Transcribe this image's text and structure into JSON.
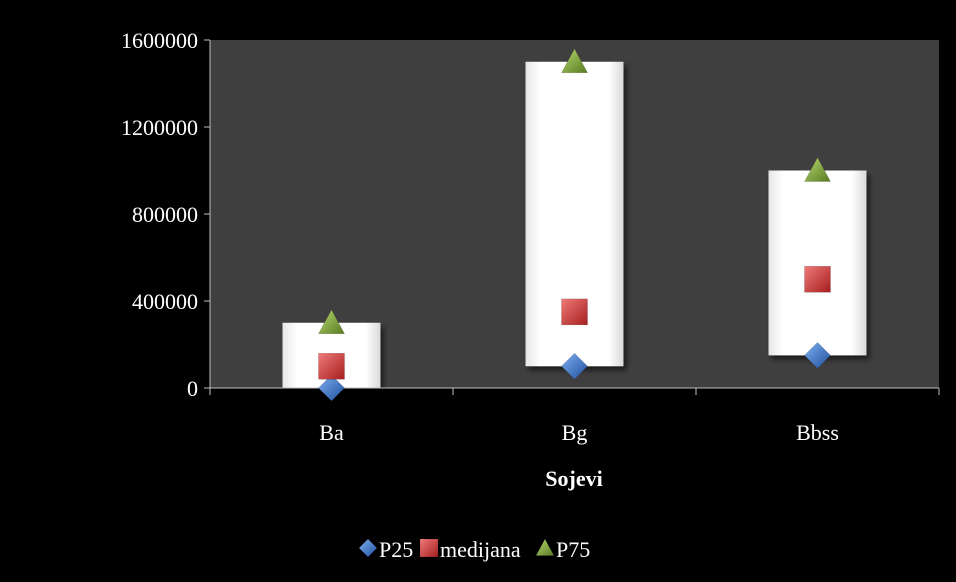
{
  "chart_data": {
    "type": "scatter",
    "title": "",
    "xlabel": "Sojevi",
    "ylabel": "",
    "categories": [
      "Ba",
      "Bg",
      "Bbss"
    ],
    "ylim": [
      0,
      1600000
    ],
    "yticks": [
      0,
      400000,
      800000,
      1200000,
      1600000
    ],
    "ytick_labels": [
      "0",
      "400000",
      "800000",
      "1200000",
      "1600000"
    ],
    "series": [
      {
        "name": "P25",
        "marker": "diamond",
        "color": "#3a6fc4",
        "values": [
          0,
          100000,
          150000
        ]
      },
      {
        "name": "medijana",
        "marker": "square",
        "color": "#d23b3b",
        "values": [
          100000,
          350000,
          500000
        ]
      },
      {
        "name": "P75",
        "marker": "triangle",
        "color": "#7fa83a",
        "values": [
          300000,
          1500000,
          1000000
        ]
      }
    ],
    "boxes": [
      {
        "category": "Ba",
        "low": 0,
        "high": 300000
      },
      {
        "category": "Bg",
        "low": 100000,
        "high": 1500000
      },
      {
        "category": "Bbss",
        "low": 150000,
        "high": 1000000
      }
    ],
    "legend_position": "bottom",
    "plot_background": "#3f3f3f",
    "page_background": "#000000",
    "grid": false
  }
}
